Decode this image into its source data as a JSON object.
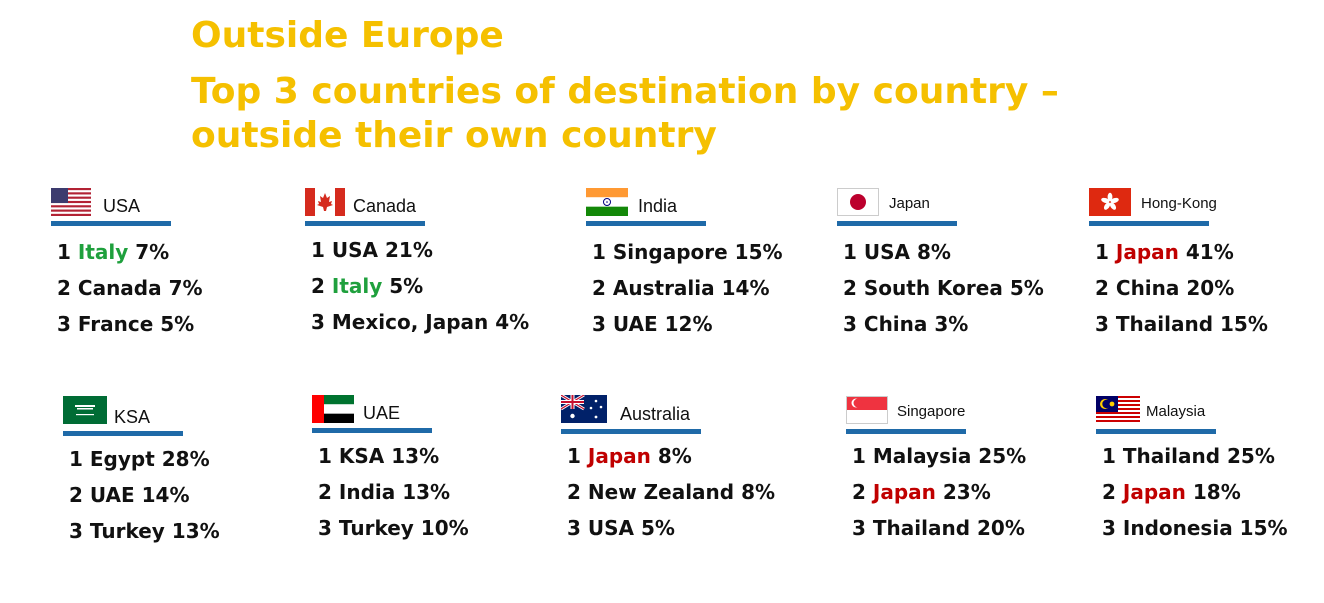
{
  "title": "Outside Europe",
  "subtitle_line1": "Top 3 countries of destination by country –",
  "subtitle_line2": "outside their own country",
  "colors": {
    "title": "#f5c000",
    "bar": "#1f6aa8",
    "green": "#1fa03d",
    "red": "#c00000"
  },
  "cards": [
    {
      "country": "USA",
      "flag_icon": "usa-flag-icon",
      "items": [
        {
          "rank": "1",
          "dest": "Italy",
          "pct": "7%",
          "hl": "green"
        },
        {
          "rank": "2",
          "dest": "Canada",
          "pct": "7%",
          "hl": ""
        },
        {
          "rank": "3",
          "dest": "France",
          "pct": "5%",
          "hl": ""
        }
      ]
    },
    {
      "country": "Canada",
      "flag_icon": "canada-flag-icon",
      "items": [
        {
          "rank": "1",
          "dest": "USA",
          "pct": "21%",
          "hl": ""
        },
        {
          "rank": "2",
          "dest": "Italy",
          "pct": "5%",
          "hl": "green"
        },
        {
          "rank": "3",
          "dest": "Mexico, Japan",
          "pct": "4%",
          "hl": ""
        }
      ]
    },
    {
      "country": "India",
      "flag_icon": "india-flag-icon",
      "items": [
        {
          "rank": "1",
          "dest": "Singapore",
          "pct": "15%",
          "hl": ""
        },
        {
          "rank": "2",
          "dest": "Australia",
          "pct": "14%",
          "hl": ""
        },
        {
          "rank": "3",
          "dest": "UAE",
          "pct": "12%",
          "hl": ""
        }
      ]
    },
    {
      "country": "Japan",
      "flag_icon": "japan-flag-icon",
      "items": [
        {
          "rank": "1",
          "dest": "USA",
          "pct": "8%",
          "hl": ""
        },
        {
          "rank": "2",
          "dest": "South Korea",
          "pct": "5%",
          "hl": ""
        },
        {
          "rank": "3",
          "dest": "China",
          "pct": "3%",
          "hl": ""
        }
      ]
    },
    {
      "country": "Hong-Kong",
      "flag_icon": "hong-kong-flag-icon",
      "items": [
        {
          "rank": "1",
          "dest": "Japan",
          "pct": "41%",
          "hl": "red"
        },
        {
          "rank": "2",
          "dest": "China",
          "pct": "20%",
          "hl": ""
        },
        {
          "rank": "3",
          "dest": "Thailand",
          "pct": "15%",
          "hl": ""
        }
      ]
    },
    {
      "country": "KSA",
      "flag_icon": "ksa-flag-icon",
      "items": [
        {
          "rank": "1",
          "dest": "Egypt",
          "pct": "28%",
          "hl": ""
        },
        {
          "rank": "2",
          "dest": "UAE",
          "pct": "14%",
          "hl": ""
        },
        {
          "rank": "3",
          "dest": "Turkey",
          "pct": "13%",
          "hl": ""
        }
      ]
    },
    {
      "country": "UAE",
      "flag_icon": "uae-flag-icon",
      "items": [
        {
          "rank": "1",
          "dest": "KSA",
          "pct": "13%",
          "hl": ""
        },
        {
          "rank": "2",
          "dest": "India",
          "pct": "13%",
          "hl": ""
        },
        {
          "rank": "3",
          "dest": "Turkey",
          "pct": "10%",
          "hl": ""
        }
      ]
    },
    {
      "country": "Australia",
      "flag_icon": "australia-flag-icon",
      "items": [
        {
          "rank": "1",
          "dest": "Japan",
          "pct": "8%",
          "hl": "red"
        },
        {
          "rank": "2",
          "dest": "New Zealand",
          "pct": "8%",
          "hl": ""
        },
        {
          "rank": "3",
          "dest": "USA",
          "pct": "5%",
          "hl": ""
        }
      ]
    },
    {
      "country": "Singapore",
      "flag_icon": "singapore-flag-icon",
      "items": [
        {
          "rank": "1",
          "dest": "Malaysia",
          "pct": "25%",
          "hl": ""
        },
        {
          "rank": "2",
          "dest": "Japan",
          "pct": "23%",
          "hl": "red"
        },
        {
          "rank": "3",
          "dest": "Thailand",
          "pct": "20%",
          "hl": ""
        }
      ]
    },
    {
      "country": "Malaysia",
      "flag_icon": "malaysia-flag-icon",
      "items": [
        {
          "rank": "1",
          "dest": "Thailand",
          "pct": "25%",
          "hl": ""
        },
        {
          "rank": "2",
          "dest": "Japan",
          "pct": "18%",
          "hl": "red"
        },
        {
          "rank": "3",
          "dest": "Indonesia",
          "pct": "15%",
          "hl": ""
        }
      ]
    }
  ]
}
